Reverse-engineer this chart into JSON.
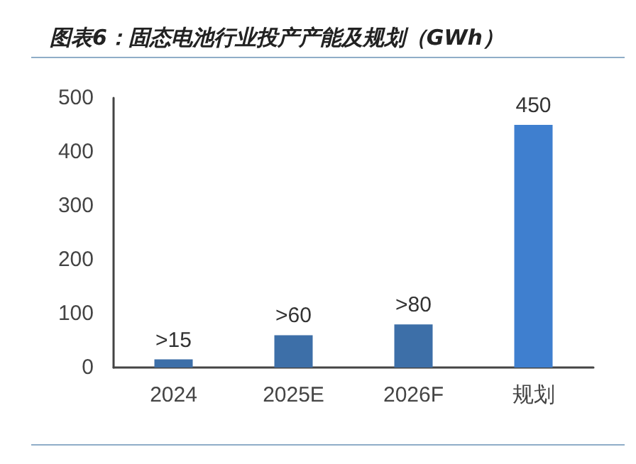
{
  "chart_data": {
    "type": "bar",
    "title": "图表6：固态电池行业投产产能及规划（GWh）",
    "categories": [
      "2024",
      "2025E",
      "2026F",
      "规划"
    ],
    "values": [
      15,
      60,
      80,
      450
    ],
    "colors": [
      "#3d6fa8",
      "#3d6fa8",
      "#3d6fa8",
      "#3f7fcf"
    ],
    "value_labels": [
      ">15",
      ">60",
      ">80",
      "450"
    ],
    "ylim": [
      0,
      500
    ],
    "yticks": [
      0,
      100,
      200,
      300,
      400,
      500
    ],
    "grid": false
  }
}
